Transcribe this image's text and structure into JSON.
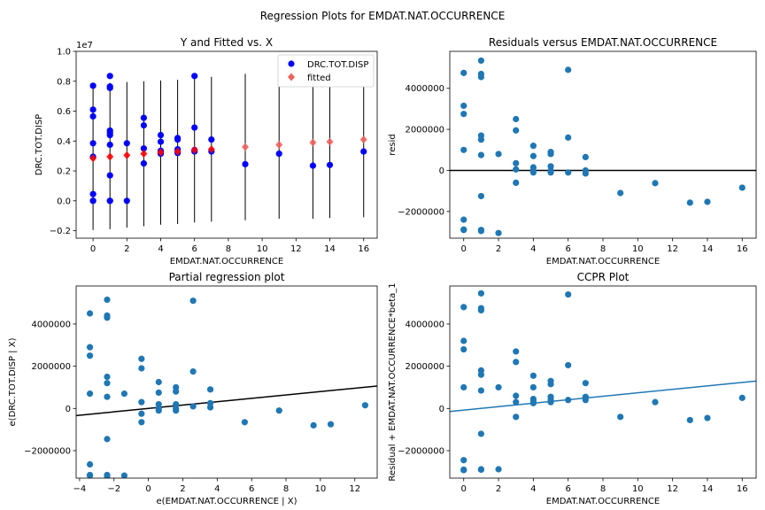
{
  "figure": {
    "suptitle": "Regression Plots for EMDAT.NAT.OCCURRENCE"
  },
  "colors": {
    "blue": "#0000ff",
    "red": "#ff0000",
    "salmon": "#f0625c",
    "steel": "#1f77b4",
    "black": "#000000"
  },
  "chart_data": [
    {
      "type": "scatter",
      "title": "Y and Fitted vs. X",
      "xlabel": "EMDAT.NAT.OCCURRENCE",
      "ylabel": "DRC.TOT.DISP",
      "y_offset_text": "1e7",
      "xlim": [
        -1,
        16.8
      ],
      "ylim": [
        -0.25,
        1.0
      ],
      "xticks": [
        0,
        2,
        4,
        6,
        8,
        10,
        12,
        14,
        16
      ],
      "yticks": [
        -0.2,
        0.0,
        0.2,
        0.4,
        0.6,
        0.8,
        1.0
      ],
      "ytick_labels": [
        "−0.2",
        "0.0",
        "0.2",
        "0.4",
        "0.6",
        "0.8",
        "1.0"
      ],
      "legend": {
        "placement": "top-right",
        "entries": [
          "DRC.TOT.DISP",
          "fitted"
        ]
      },
      "series": [
        {
          "name": "DRC.TOT.DISP",
          "marker": "circle",
          "color": "#0000ff",
          "points": [
            [
              0,
              0.77
            ],
            [
              0,
              0.61
            ],
            [
              0,
              0.565
            ],
            [
              0,
              0.385
            ],
            [
              0,
              0.295
            ],
            [
              0,
              0.045
            ],
            [
              0,
              0.0
            ],
            [
              0,
              0.0
            ],
            [
              1,
              0.835
            ],
            [
              1,
              0.765
            ],
            [
              1,
              0.755
            ],
            [
              1,
              0.47
            ],
            [
              1,
              0.455
            ],
            [
              1,
              0.44
            ],
            [
              1,
              0.375
            ],
            [
              1,
              0.17
            ],
            [
              1,
              0.0
            ],
            [
              1,
              0.0
            ],
            [
              2,
              0.385
            ],
            [
              2,
              0.0
            ],
            [
              3,
              0.555
            ],
            [
              3,
              0.505
            ],
            [
              3,
              0.35
            ],
            [
              3,
              0.25
            ],
            [
              4,
              0.44
            ],
            [
              4,
              0.395
            ],
            [
              4,
              0.335
            ],
            [
              4,
              0.325
            ],
            [
              4,
              0.315
            ],
            [
              5,
              0.42
            ],
            [
              5,
              0.41
            ],
            [
              5,
              0.345
            ],
            [
              5,
              0.33
            ],
            [
              5,
              0.32
            ],
            [
              6,
              0.835
            ],
            [
              6,
              0.49
            ],
            [
              6,
              0.34
            ],
            [
              6,
              0.33
            ],
            [
              7,
              0.41
            ],
            [
              7,
              0.33
            ],
            [
              9,
              0.245
            ],
            [
              11,
              0.315
            ],
            [
              13,
              0.235
            ],
            [
              14,
              0.24
            ],
            [
              16,
              0.33
            ]
          ]
        },
        {
          "name": "fitted",
          "marker": "diamond",
          "color": "#f0625c",
          "points": [
            [
              0,
              0.285
            ],
            [
              1,
              0.295
            ],
            [
              2,
              0.305
            ],
            [
              3,
              0.315
            ],
            [
              4,
              0.325
            ],
            [
              5,
              0.33
            ],
            [
              6,
              0.34
            ],
            [
              7,
              0.345
            ],
            [
              9,
              0.36
            ],
            [
              11,
              0.375
            ],
            [
              13,
              0.39
            ],
            [
              14,
              0.395
            ],
            [
              16,
              0.41
            ]
          ]
        }
      ],
      "prediction_intervals": [
        [
          0,
          -0.195,
          0.785
        ],
        [
          1,
          -0.19,
          0.79
        ],
        [
          2,
          -0.18,
          0.795
        ],
        [
          3,
          -0.17,
          0.8
        ],
        [
          4,
          -0.16,
          0.805
        ],
        [
          5,
          -0.155,
          0.81
        ],
        [
          6,
          -0.145,
          0.82
        ],
        [
          7,
          -0.14,
          0.83
        ],
        [
          9,
          -0.13,
          0.85
        ],
        [
          11,
          -0.12,
          0.865
        ],
        [
          13,
          -0.12,
          0.875
        ],
        [
          14,
          -0.115,
          0.88
        ],
        [
          16,
          -0.11,
          0.89
        ]
      ]
    },
    {
      "type": "scatter",
      "title": "Residuals versus EMDAT.NAT.OCCURRENCE",
      "xlabel": "EMDAT.NAT.OCCURRENCE",
      "ylabel": "resid",
      "xlim": [
        -0.8,
        16.8
      ],
      "ylim": [
        -3300000,
        5800000
      ],
      "xticks": [
        0,
        2,
        4,
        6,
        8,
        10,
        12,
        14,
        16
      ],
      "yticks": [
        -2000000,
        0,
        2000000,
        4000000
      ],
      "ytick_labels": [
        "−2000000",
        "0",
        "2000000",
        "4000000"
      ],
      "hline": 0,
      "points": [
        [
          0,
          4750000
        ],
        [
          0,
          3150000
        ],
        [
          0,
          2750000
        ],
        [
          0,
          1000000
        ],
        [
          0,
          -2400000
        ],
        [
          0,
          -2880000
        ],
        [
          0,
          -2900000
        ],
        [
          1,
          5350000
        ],
        [
          1,
          4700000
        ],
        [
          1,
          4550000
        ],
        [
          1,
          1700000
        ],
        [
          1,
          1500000
        ],
        [
          1,
          750000
        ],
        [
          1,
          -1250000
        ],
        [
          1,
          -2900000
        ],
        [
          1,
          -2950000
        ],
        [
          2,
          800000
        ],
        [
          2,
          -3050000
        ],
        [
          3,
          2500000
        ],
        [
          3,
          1950000
        ],
        [
          3,
          350000
        ],
        [
          3,
          50000
        ],
        [
          3,
          -600000
        ],
        [
          4,
          1200000
        ],
        [
          4,
          700000
        ],
        [
          4,
          150000
        ],
        [
          4,
          0
        ],
        [
          4,
          -100000
        ],
        [
          5,
          900000
        ],
        [
          5,
          800000
        ],
        [
          5,
          200000
        ],
        [
          5,
          0
        ],
        [
          5,
          -100000
        ],
        [
          6,
          4900000
        ],
        [
          6,
          1600000
        ],
        [
          6,
          -100000
        ],
        [
          7,
          650000
        ],
        [
          7,
          0
        ],
        [
          7,
          -150000
        ],
        [
          9,
          -1100000
        ],
        [
          11,
          -620000
        ],
        [
          13,
          -1570000
        ],
        [
          14,
          -1530000
        ],
        [
          16,
          -840000
        ]
      ]
    },
    {
      "type": "scatter",
      "title": "Partial regression plot",
      "xlabel": "e(EMDAT.NAT.OCCURRENCE | X)",
      "ylabel": "e(DRC.TOT.DISP | X)",
      "xlim": [
        -4.2,
        13.3
      ],
      "ylim": [
        -3300000,
        5800000
      ],
      "xticks": [
        -4,
        -2,
        0,
        2,
        4,
        6,
        8,
        10,
        12
      ],
      "xtick_labels": [
        "−4",
        "−2",
        "0",
        "2",
        "4",
        "6",
        "8",
        "10",
        "12"
      ],
      "yticks": [
        -2000000,
        0,
        2000000,
        4000000
      ],
      "ytick_labels": [
        "−2000000",
        "0",
        "2000000",
        "4000000"
      ],
      "fit_line": {
        "slope": 80000,
        "intercept": 0
      },
      "points": [
        [
          -3.4,
          4500000
        ],
        [
          -3.4,
          2900000
        ],
        [
          -3.4,
          2500000
        ],
        [
          -3.4,
          700000
        ],
        [
          -3.4,
          -2650000
        ],
        [
          -3.4,
          -3150000
        ],
        [
          -3.4,
          -3180000
        ],
        [
          -2.4,
          5150000
        ],
        [
          -2.4,
          4400000
        ],
        [
          -2.4,
          4300000
        ],
        [
          -2.4,
          1500000
        ],
        [
          -2.4,
          1200000
        ],
        [
          -2.4,
          550000
        ],
        [
          -2.4,
          -1450000
        ],
        [
          -2.4,
          -3150000
        ],
        [
          -2.4,
          -3200000
        ],
        [
          -1.4,
          700000
        ],
        [
          -1.4,
          -3180000
        ],
        [
          -0.4,
          2350000
        ],
        [
          -0.4,
          1900000
        ],
        [
          -0.4,
          300000
        ],
        [
          -0.4,
          -250000
        ],
        [
          -0.4,
          -650000
        ],
        [
          0.6,
          1250000
        ],
        [
          0.6,
          750000
        ],
        [
          0.6,
          200000
        ],
        [
          0.6,
          0
        ],
        [
          0.6,
          -100000
        ],
        [
          1.6,
          1000000
        ],
        [
          1.6,
          800000
        ],
        [
          1.6,
          200000
        ],
        [
          1.6,
          0
        ],
        [
          1.6,
          -100000
        ],
        [
          2.6,
          5100000
        ],
        [
          2.6,
          1750000
        ],
        [
          2.6,
          100000
        ],
        [
          3.6,
          900000
        ],
        [
          3.6,
          250000
        ],
        [
          3.6,
          50000
        ],
        [
          5.6,
          -650000
        ],
        [
          7.6,
          -100000
        ],
        [
          9.6,
          -800000
        ],
        [
          10.6,
          -750000
        ],
        [
          12.6,
          150000
        ]
      ]
    },
    {
      "type": "scatter",
      "title": "CCPR Plot",
      "xlabel": "EMDAT.NAT.OCCURRENCE",
      "ylabel": "Residual + EMDAT.NAT.OCCURRENCE*beta_1",
      "xlim": [
        -0.8,
        16.8
      ],
      "ylim": [
        -3300000,
        5800000
      ],
      "xticks": [
        0,
        2,
        4,
        6,
        8,
        10,
        12,
        14,
        16
      ],
      "yticks": [
        -2000000,
        0,
        2000000,
        4000000
      ],
      "ytick_labels": [
        "−2000000",
        "0",
        "2000000",
        "4000000"
      ],
      "fit_line": {
        "slope": 82000,
        "intercept": -80000
      },
      "points": [
        [
          0,
          4800000
        ],
        [
          0,
          3200000
        ],
        [
          0,
          2800000
        ],
        [
          0,
          1000000
        ],
        [
          0,
          -2450000
        ],
        [
          0,
          -2900000
        ],
        [
          0,
          -2920000
        ],
        [
          1,
          5450000
        ],
        [
          1,
          4750000
        ],
        [
          1,
          4650000
        ],
        [
          1,
          1800000
        ],
        [
          1,
          1600000
        ],
        [
          1,
          850000
        ],
        [
          1,
          -1200000
        ],
        [
          1,
          -2880000
        ],
        [
          1,
          -2900000
        ],
        [
          2,
          1000000
        ],
        [
          2,
          -2880000
        ],
        [
          3,
          2700000
        ],
        [
          3,
          2200000
        ],
        [
          3,
          600000
        ],
        [
          3,
          300000
        ],
        [
          3,
          -400000
        ],
        [
          4,
          1550000
        ],
        [
          4,
          1000000
        ],
        [
          4,
          450000
        ],
        [
          4,
          350000
        ],
        [
          4,
          250000
        ],
        [
          5,
          1300000
        ],
        [
          5,
          1150000
        ],
        [
          5,
          550000
        ],
        [
          5,
          400000
        ],
        [
          5,
          300000
        ],
        [
          6,
          5400000
        ],
        [
          6,
          2050000
        ],
        [
          6,
          400000
        ],
        [
          7,
          1200000
        ],
        [
          7,
          550000
        ],
        [
          7,
          400000
        ],
        [
          9,
          -400000
        ],
        [
          11,
          300000
        ],
        [
          13,
          -550000
        ],
        [
          14,
          -450000
        ],
        [
          16,
          500000
        ]
      ]
    }
  ]
}
